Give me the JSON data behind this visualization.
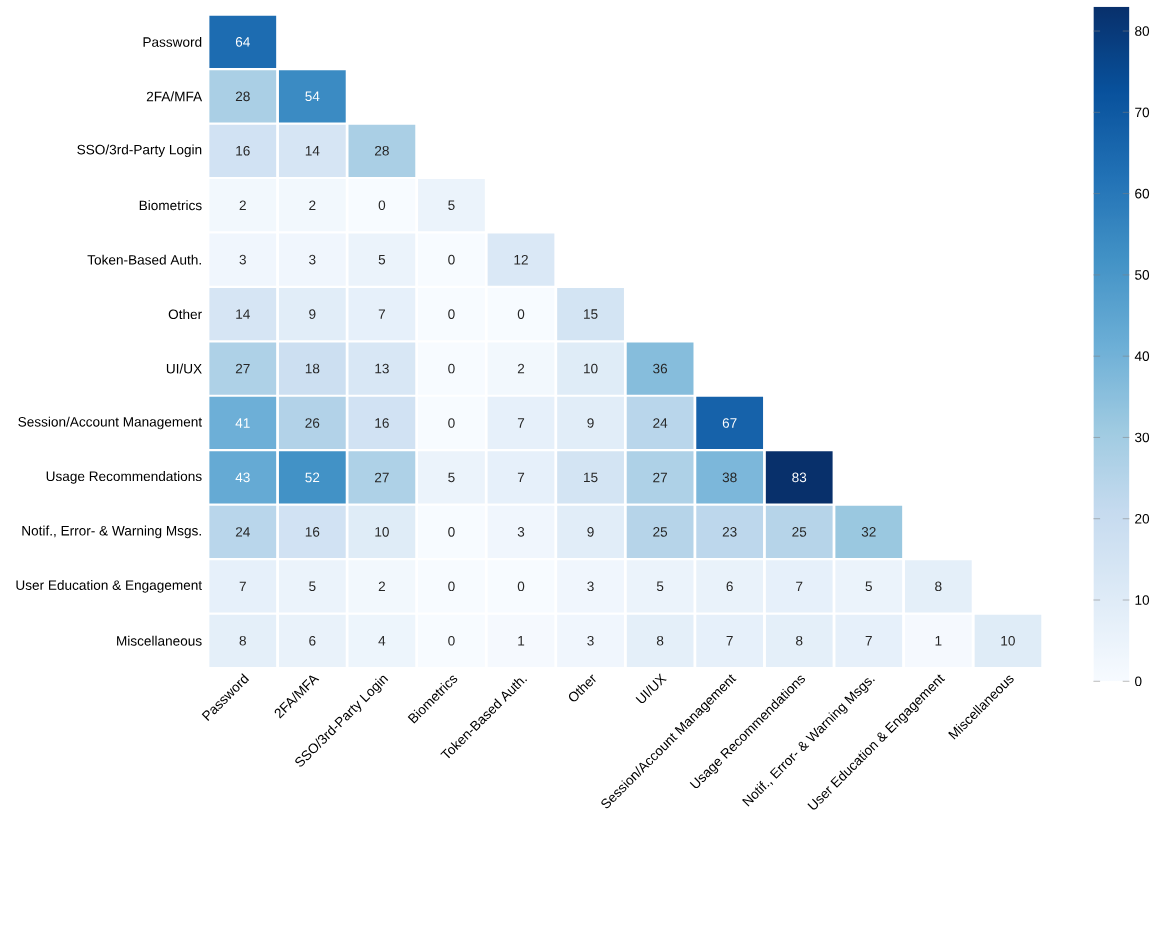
{
  "chart_data": {
    "type": "heatmap",
    "categories": [
      "Password",
      "2FA/MFA",
      "SSO/3rd-Party Login",
      "Biometrics",
      "Token-Based Auth.",
      "Other",
      "UI/UX",
      "Session/Account Management",
      "Usage Recommendations",
      "Notif., Error- & Warning Msgs.",
      "User Education & Engagement",
      "Miscellaneous"
    ],
    "y_categories": [
      "Password",
      "2FA/MFA",
      "SSO/3rd-Party Login",
      "Biometrics",
      "Token-Based Auth.",
      "Other",
      "UI/UX",
      "Session/Account Management",
      "Usage Recommendations",
      "Notif., Error- & Warning Msgs.",
      "User Education & Engagement",
      "Miscellaneous"
    ],
    "cells": [
      [
        64,
        null,
        null,
        null,
        null,
        null,
        null,
        null,
        null,
        null,
        null,
        null
      ],
      [
        28,
        54,
        null,
        null,
        null,
        null,
        null,
        null,
        null,
        null,
        null,
        null
      ],
      [
        16,
        14,
        28,
        null,
        null,
        null,
        null,
        null,
        null,
        null,
        null,
        null
      ],
      [
        2,
        2,
        0,
        5,
        null,
        null,
        null,
        null,
        null,
        null,
        null,
        null
      ],
      [
        3,
        3,
        5,
        0,
        12,
        null,
        null,
        null,
        null,
        null,
        null,
        null
      ],
      [
        14,
        9,
        7,
        0,
        0,
        15,
        null,
        null,
        null,
        null,
        null,
        null
      ],
      [
        27,
        18,
        13,
        0,
        2,
        10,
        36,
        null,
        null,
        null,
        null,
        null
      ],
      [
        41,
        26,
        16,
        0,
        7,
        9,
        24,
        67,
        null,
        null,
        null,
        null
      ],
      [
        43,
        52,
        27,
        5,
        7,
        15,
        27,
        38,
        83,
        null,
        null,
        null
      ],
      [
        24,
        16,
        10,
        0,
        3,
        9,
        25,
        23,
        25,
        32,
        null,
        null
      ],
      [
        7,
        5,
        2,
        0,
        0,
        3,
        5,
        6,
        7,
        5,
        8,
        null
      ],
      [
        8,
        6,
        4,
        0,
        1,
        3,
        8,
        7,
        8,
        7,
        1,
        10
      ]
    ],
    "data_labels": true,
    "clim": [
      0,
      83
    ],
    "cticks": [
      0,
      10,
      20,
      30,
      40,
      50,
      60,
      70,
      80
    ]
  }
}
